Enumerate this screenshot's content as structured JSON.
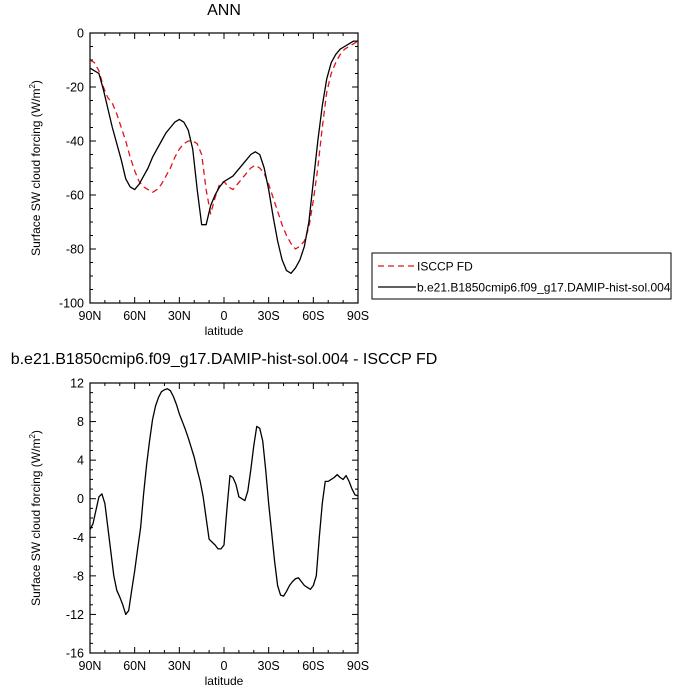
{
  "chart_data": [
    {
      "type": "line",
      "title": "ANN",
      "xlabel": "latitude",
      "ylabel": "Surface SW cloud forcing (W/m",
      "ylabel_sup": "2",
      "ylabel_suffix": ")",
      "xlim": [
        90,
        -90
      ],
      "ylim": [
        -100,
        0
      ],
      "x_ticks": [
        90,
        60,
        30,
        0,
        -30,
        -60,
        -90
      ],
      "x_tick_labels": [
        "90N",
        "60N",
        "30N",
        "0",
        "30S",
        "60S",
        "90S"
      ],
      "y_ticks": [
        0,
        -20,
        -40,
        -60,
        -80,
        -100
      ],
      "y_tick_labels": [
        "0",
        "-20",
        "-40",
        "-60",
        "-80",
        "-100"
      ],
      "grid": false,
      "legend": "right",
      "series": [
        {
          "name": "ISCCP FD",
          "color": "#e0141e",
          "dash": "dashed",
          "x": [
            90,
            87,
            84,
            81,
            78,
            75,
            72,
            69,
            66,
            63,
            60,
            57,
            54,
            51,
            48,
            45,
            42,
            39,
            36,
            33,
            30,
            27,
            24,
            21,
            18,
            15,
            12,
            9,
            6,
            3,
            0,
            -3,
            -6,
            -9,
            -12,
            -15,
            -18,
            -21,
            -24,
            -27,
            -30,
            -33,
            -36,
            -39,
            -42,
            -45,
            -48,
            -51,
            -54,
            -57,
            -60,
            -63,
            -66,
            -69,
            -72,
            -75,
            -78,
            -81,
            -84,
            -87,
            -90
          ],
          "y": [
            -10,
            -11,
            -14,
            -20,
            -24,
            -26,
            -30,
            -35,
            -40,
            -46,
            -51,
            -55,
            -57,
            -58,
            -59,
            -58,
            -56,
            -53,
            -50,
            -46,
            -43,
            -41,
            -40,
            -40,
            -41,
            -45,
            -58,
            -67,
            -61,
            -56,
            -55,
            -57,
            -58,
            -56,
            -54,
            -52,
            -50,
            -49,
            -50,
            -52,
            -56,
            -61,
            -66,
            -71,
            -75,
            -78,
            -80,
            -79,
            -77,
            -72,
            -62,
            -50,
            -35,
            -22,
            -15,
            -11,
            -8,
            -6,
            -5,
            -4,
            -3
          ]
        },
        {
          "name": "b.e21.B1850cmip6.f09_g17.DAMIP-hist-sol.004",
          "color": "#000000",
          "dash": "solid",
          "x": [
            90,
            87,
            84,
            81,
            78,
            75,
            72,
            69,
            66,
            63,
            60,
            57,
            54,
            51,
            48,
            45,
            42,
            39,
            36,
            33,
            30,
            27,
            24,
            21,
            18,
            15,
            12,
            9,
            6,
            3,
            0,
            -3,
            -6,
            -9,
            -12,
            -15,
            -18,
            -21,
            -24,
            -27,
            -30,
            -33,
            -36,
            -39,
            -42,
            -45,
            -48,
            -51,
            -54,
            -57,
            -60,
            -63,
            -66,
            -69,
            -72,
            -75,
            -78,
            -81,
            -84,
            -87,
            -90
          ],
          "y": [
            -13,
            -14,
            -15,
            -21,
            -28,
            -35,
            -41,
            -47,
            -54,
            -57,
            -58,
            -56,
            -53,
            -50,
            -46,
            -43,
            -40,
            -37,
            -35,
            -33,
            -32,
            -33,
            -36,
            -43,
            -58,
            -71,
            -71,
            -64,
            -60,
            -57,
            -55,
            -54,
            -53,
            -51,
            -49,
            -47,
            -45,
            -44,
            -45,
            -50,
            -58,
            -68,
            -77,
            -84,
            -88,
            -89,
            -87,
            -84,
            -79,
            -70,
            -55,
            -40,
            -27,
            -17,
            -11,
            -8,
            -6,
            -5,
            -4,
            -3,
            -3
          ]
        }
      ]
    },
    {
      "type": "line",
      "title": "b.e21.B1850cmip6.f09_g17.DAMIP-hist-sol.004 - ISCCP FD",
      "xlabel": "latitude",
      "ylabel": "Surface SW cloud forcing (W/m",
      "ylabel_sup": "2",
      "ylabel_suffix": ")",
      "xlim": [
        90,
        -90
      ],
      "ylim": [
        -16,
        12
      ],
      "x_ticks": [
        90,
        60,
        30,
        0,
        -30,
        -60,
        -90
      ],
      "x_tick_labels": [
        "90N",
        "60N",
        "30N",
        "0",
        "30S",
        "60S",
        "90S"
      ],
      "y_ticks": [
        12,
        8,
        4,
        0,
        -4,
        -8,
        -12,
        -16
      ],
      "y_tick_labels": [
        "12",
        "8",
        "4",
        "0",
        "-4",
        "-8",
        "-12",
        "-16"
      ],
      "grid": false,
      "series": [
        {
          "color": "#000000",
          "dash": "solid",
          "x": [
            90,
            88,
            86,
            84,
            82,
            80,
            78,
            76,
            74,
            72,
            70,
            68,
            66,
            64,
            62,
            60,
            58,
            56,
            54,
            52,
            50,
            48,
            46,
            44,
            42,
            40,
            38,
            36,
            34,
            32,
            30,
            28,
            26,
            24,
            22,
            20,
            18,
            16,
            14,
            12,
            10,
            8,
            6,
            4,
            2,
            0,
            -2,
            -4,
            -6,
            -8,
            -10,
            -12,
            -14,
            -16,
            -18,
            -20,
            -22,
            -24,
            -26,
            -28,
            -30,
            -32,
            -34,
            -36,
            -38,
            -40,
            -42,
            -44,
            -46,
            -48,
            -50,
            -52,
            -54,
            -56,
            -58,
            -60,
            -62,
            -64,
            -66,
            -68,
            -70,
            -72,
            -74,
            -76,
            -78,
            -80,
            -82,
            -84,
            -86,
            -88,
            -90
          ],
          "y": [
            -3.2,
            -2.6,
            -1.2,
            0.2,
            0.5,
            -0.5,
            -3,
            -5.5,
            -8,
            -9.5,
            -10.2,
            -11,
            -12,
            -11.6,
            -9.5,
            -7.5,
            -5.2,
            -3,
            0.5,
            3.5,
            6,
            8.2,
            9.6,
            10.5,
            11.1,
            11.3,
            11.4,
            11.2,
            10.6,
            9.8,
            8.8,
            8,
            7.2,
            6.3,
            5.3,
            4.3,
            3,
            1.8,
            0.2,
            -2,
            -4.2,
            -4.5,
            -4.8,
            -5.2,
            -5.2,
            -4.8,
            -1,
            2.4,
            2.2,
            1.5,
            0.2,
            0,
            -0.2,
            0.8,
            3,
            5.5,
            7.5,
            7.3,
            6,
            3,
            -0.5,
            -3.5,
            -6.5,
            -9,
            -10,
            -10.1,
            -9.6,
            -9,
            -8.6,
            -8.3,
            -8.2,
            -8.6,
            -9,
            -9.2,
            -9.4,
            -9,
            -8,
            -4,
            -0.5,
            1.8,
            1.8,
            2,
            2.2,
            2.5,
            2.2,
            2,
            2.4,
            1.8,
            1,
            0.4,
            0.3
          ]
        }
      ]
    }
  ]
}
